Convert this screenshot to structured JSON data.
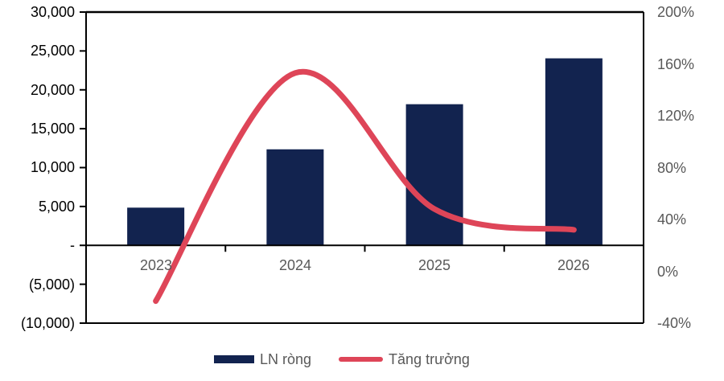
{
  "chart_data": {
    "type": "bar-line-combo",
    "title": "",
    "categories": [
      "2023",
      "2024",
      "2025",
      "2026"
    ],
    "series": [
      {
        "name": "LN ròng",
        "type": "bar",
        "axis": "left",
        "color": "#12234F",
        "values": [
          4850,
          12350,
          18150,
          24050
        ]
      },
      {
        "name": "Tăng trưởng",
        "type": "line",
        "axis": "right",
        "color": "#DE4558",
        "values": [
          -23,
          153,
          48,
          32
        ],
        "unit": "%"
      }
    ],
    "left_axis": {
      "min": -10000,
      "max": 30000,
      "step": 5000,
      "tick_labels": [
        "30,000",
        "25,000",
        "20,000",
        "15,000",
        "10,000",
        "5,000",
        "-",
        "(5,000)",
        "(10,000)"
      ]
    },
    "right_axis": {
      "min": -40,
      "max": 200,
      "step": 40,
      "tick_labels": [
        "200%",
        "160%",
        "120%",
        "80%",
        "40%",
        "0%",
        "-40%"
      ]
    },
    "x_axis": {
      "tick_labels": [
        "2023",
        "2024",
        "2025",
        "2026"
      ]
    },
    "legend": {
      "position": "bottom",
      "items": [
        {
          "label": "LN ròng",
          "swatch": "bar",
          "color": "#12234F"
        },
        {
          "label": "Tăng trưởng",
          "swatch": "line",
          "color": "#DE4558"
        }
      ]
    },
    "grid": "off",
    "axis_line_color": "#000000",
    "background": "#FFFFFF"
  }
}
